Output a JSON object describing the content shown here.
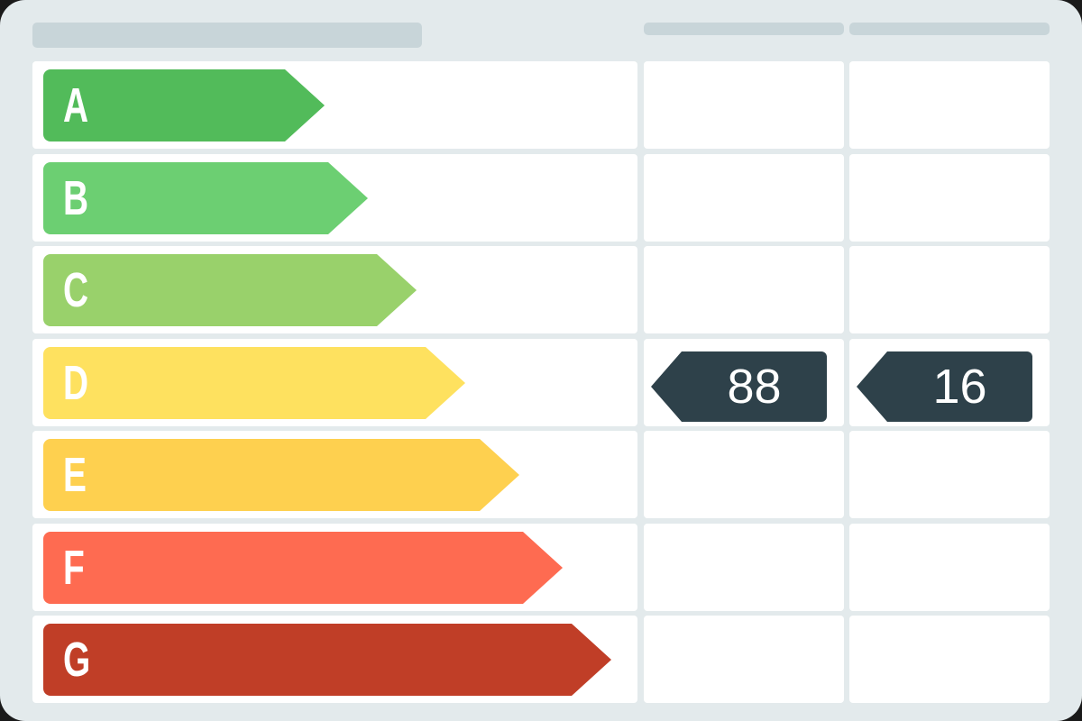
{
  "ratings": [
    {
      "label": "A",
      "color": "#52bb5a"
    },
    {
      "label": "B",
      "color": "#6ccf72"
    },
    {
      "label": "C",
      "color": "#99d16b"
    },
    {
      "label": "D",
      "color": "#fee15f"
    },
    {
      "label": "E",
      "color": "#fed04f"
    },
    {
      "label": "F",
      "color": "#fe6b51"
    },
    {
      "label": "G",
      "color": "#c03e27"
    }
  ],
  "markers": {
    "current": {
      "value": "88",
      "rating": "D"
    },
    "potential": {
      "value": "16",
      "rating": "D"
    }
  },
  "marker_color": "#2e414a"
}
